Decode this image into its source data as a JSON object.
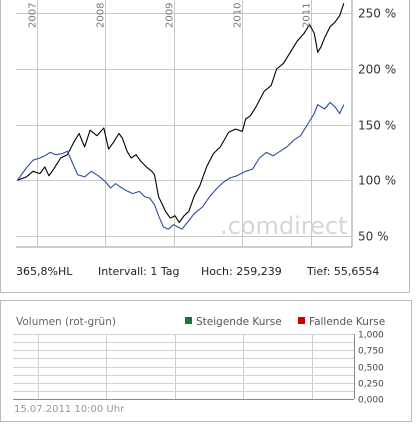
{
  "chart_data": {
    "type": "line",
    "x_tick_labels": [
      "2007",
      "2008",
      "2009",
      "2010",
      "2011"
    ],
    "y_tick_labels": [
      "250 %",
      "200 %",
      "150 %",
      "100 %",
      "50 %"
    ],
    "y_tick_values": [
      250,
      200,
      150,
      100,
      50
    ],
    "ylim": [
      40,
      262
    ],
    "xlim": [
      2006.7,
      2011.6
    ],
    "grid": true,
    "watermark": ".comdirect",
    "series": [
      {
        "color": "#000000",
        "points": [
          [
            2006.72,
            100
          ],
          [
            2006.85,
            103
          ],
          [
            2006.95,
            108
          ],
          [
            2007.05,
            106
          ],
          [
            2007.12,
            112
          ],
          [
            2007.18,
            104
          ],
          [
            2007.25,
            110
          ],
          [
            2007.35,
            120
          ],
          [
            2007.45,
            123
          ],
          [
            2007.55,
            135
          ],
          [
            2007.62,
            142
          ],
          [
            2007.7,
            130
          ],
          [
            2007.78,
            145
          ],
          [
            2007.88,
            140
          ],
          [
            2007.98,
            147
          ],
          [
            2008.05,
            128
          ],
          [
            2008.12,
            134
          ],
          [
            2008.2,
            142
          ],
          [
            2008.25,
            138
          ],
          [
            2008.32,
            126
          ],
          [
            2008.38,
            120
          ],
          [
            2008.45,
            123
          ],
          [
            2008.52,
            117
          ],
          [
            2008.6,
            112
          ],
          [
            2008.68,
            108
          ],
          [
            2008.72,
            105
          ],
          [
            2008.78,
            85
          ],
          [
            2008.82,
            80
          ],
          [
            2008.88,
            72
          ],
          [
            2008.95,
            66
          ],
          [
            2009.02,
            68
          ],
          [
            2009.08,
            62
          ],
          [
            2009.15,
            68
          ],
          [
            2009.22,
            72
          ],
          [
            2009.3,
            86
          ],
          [
            2009.38,
            95
          ],
          [
            2009.48,
            112
          ],
          [
            2009.58,
            124
          ],
          [
            2009.68,
            130
          ],
          [
            2009.8,
            143
          ],
          [
            2009.9,
            146
          ],
          [
            2010.0,
            144
          ],
          [
            2010.05,
            155
          ],
          [
            2010.12,
            158
          ],
          [
            2010.2,
            166
          ],
          [
            2010.32,
            180
          ],
          [
            2010.42,
            185
          ],
          [
            2010.5,
            200
          ],
          [
            2010.6,
            205
          ],
          [
            2010.7,
            215
          ],
          [
            2010.8,
            225
          ],
          [
            2010.9,
            232
          ],
          [
            2010.98,
            240
          ],
          [
            2011.05,
            232
          ],
          [
            2011.1,
            215
          ],
          [
            2011.15,
            220
          ],
          [
            2011.2,
            228
          ],
          [
            2011.28,
            238
          ],
          [
            2011.35,
            242
          ],
          [
            2011.42,
            248
          ],
          [
            2011.48,
            259
          ]
        ]
      },
      {
        "color": "#2a4f9e",
        "points": [
          [
            2006.72,
            100
          ],
          [
            2006.85,
            111
          ],
          [
            2006.95,
            118
          ],
          [
            2007.05,
            120
          ],
          [
            2007.12,
            122
          ],
          [
            2007.2,
            125
          ],
          [
            2007.28,
            123
          ],
          [
            2007.38,
            124
          ],
          [
            2007.45,
            126
          ],
          [
            2007.52,
            116
          ],
          [
            2007.6,
            105
          ],
          [
            2007.7,
            103
          ],
          [
            2007.8,
            108
          ],
          [
            2007.9,
            104
          ],
          [
            2008.0,
            99
          ],
          [
            2008.08,
            93
          ],
          [
            2008.15,
            97
          ],
          [
            2008.22,
            94
          ],
          [
            2008.3,
            91
          ],
          [
            2008.4,
            88
          ],
          [
            2008.5,
            90
          ],
          [
            2008.58,
            85
          ],
          [
            2008.65,
            84
          ],
          [
            2008.72,
            78
          ],
          [
            2008.78,
            68
          ],
          [
            2008.85,
            58
          ],
          [
            2008.92,
            56
          ],
          [
            2009.0,
            60
          ],
          [
            2009.06,
            58
          ],
          [
            2009.12,
            56
          ],
          [
            2009.2,
            62
          ],
          [
            2009.3,
            70
          ],
          [
            2009.42,
            76
          ],
          [
            2009.52,
            85
          ],
          [
            2009.62,
            92
          ],
          [
            2009.72,
            98
          ],
          [
            2009.82,
            102
          ],
          [
            2009.92,
            104
          ],
          [
            2010.05,
            108
          ],
          [
            2010.15,
            110
          ],
          [
            2010.25,
            120
          ],
          [
            2010.35,
            125
          ],
          [
            2010.45,
            122
          ],
          [
            2010.55,
            126
          ],
          [
            2010.65,
            130
          ],
          [
            2010.75,
            136
          ],
          [
            2010.85,
            140
          ],
          [
            2010.95,
            150
          ],
          [
            2011.05,
            160
          ],
          [
            2011.1,
            168
          ],
          [
            2011.2,
            164
          ],
          [
            2011.28,
            170
          ],
          [
            2011.35,
            166
          ],
          [
            2011.42,
            160
          ],
          [
            2011.48,
            168
          ]
        ]
      }
    ]
  },
  "stats": {
    "hl_label": "365,8%HL",
    "interval": "Intervall: 1 Tag",
    "high": "Hoch:  259,239",
    "low": "Tief: 55,6554"
  },
  "volume": {
    "title": "Volumen (rot-grün)",
    "legend_rising": "Steigende Kurse",
    "legend_falling": "Fallende Kurse",
    "rising_color": "#0a7a3a",
    "falling_color": "#cc0000",
    "y_tick_labels": [
      "1,000",
      "0,750",
      "0,500",
      "0,250",
      "0,000"
    ],
    "timestamp": "15.07.2011 10:00 Uhr"
  }
}
